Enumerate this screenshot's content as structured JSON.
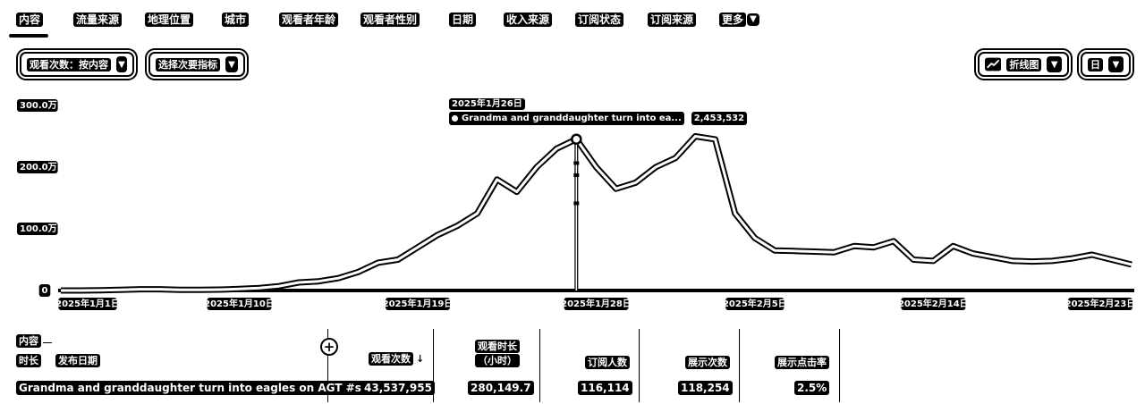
{
  "tabs": [
    {
      "label": "内容"
    },
    {
      "label": "流量来源"
    },
    {
      "label": "地理位置"
    },
    {
      "label": "城市"
    },
    {
      "label": "观看者年龄"
    },
    {
      "label": "观看者性别"
    },
    {
      "label": "日期"
    },
    {
      "label": "收入来源"
    },
    {
      "label": "订阅状态"
    },
    {
      "label": "订阅来源"
    },
    {
      "label": "更多"
    }
  ],
  "toolbar": {
    "metric_selector": "观看次数：按内容",
    "secondary_selector": "选择次要指标",
    "chart_type": "折线图",
    "granularity": "日"
  },
  "tooltip": {
    "date": "2025年1月26日",
    "series": "Grandma and granddaughter turn into ea...",
    "value": "2,453,532"
  },
  "chart_data": {
    "type": "line",
    "y_ticks": [
      "300.0万",
      "200.0万",
      "100.0万",
      "0"
    ],
    "x_ticks": [
      "2025年1月1日",
      "2025年1月10日",
      "2025年1月19日",
      "2025年1月28日",
      "2025年2月5日",
      "2025年2月14日",
      "2025年2月23日"
    ],
    "ylim": [
      0,
      3000000
    ],
    "grid": false,
    "series": [
      {
        "values": [
          0,
          0,
          5000,
          10000,
          20000,
          20000,
          10000,
          10000,
          15000,
          25000,
          40000,
          70000,
          130000,
          150000,
          200000,
          300000,
          450000,
          500000,
          700000,
          900000,
          1050000,
          1250000,
          1800000,
          1600000,
          2000000,
          2300000,
          2453532,
          2000000,
          1650000,
          1750000,
          2000000,
          2150000,
          2500000,
          2450000,
          1250000,
          850000,
          650000,
          640000,
          630000,
          620000,
          720000,
          700000,
          800000,
          500000,
          480000,
          720000,
          600000,
          540000,
          480000,
          470000,
          480000,
          520000,
          580000,
          500000,
          420000
        ],
        "highlight_index": 26
      }
    ]
  },
  "table": {
    "col_content": "内容",
    "col_duration": "时长",
    "col_publish_date": "发布日期",
    "headers": [
      "观看次数",
      "观看时长（小时）",
      "订阅人数",
      "展示次数",
      "展示点击率"
    ],
    "rows": [
      {
        "title": "Grandma and granddaughter turn into eagles on AGT #sh...",
        "values": [
          "43,537,955",
          "280,149.7",
          "116,114",
          "118,254",
          "2.5%"
        ]
      }
    ]
  }
}
